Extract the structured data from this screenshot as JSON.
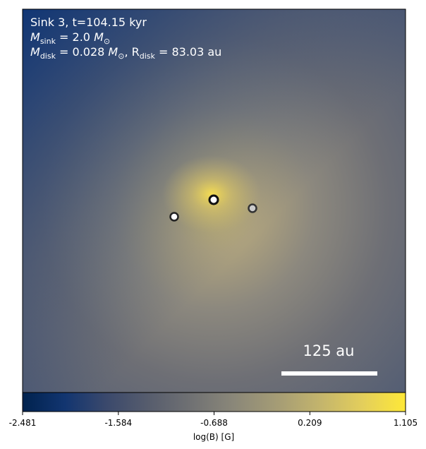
{
  "info": {
    "lines": [
      [
        {
          "t": "Sink 3, t=104.15 kyr"
        }
      ],
      [
        {
          "t": "M"
        },
        {
          "sub": "sink"
        },
        {
          "t": " = 2.0 "
        },
        {
          "t": "M"
        },
        {
          "sub": "⊙"
        }
      ],
      [
        {
          "t": "M"
        },
        {
          "sub": "disk"
        },
        {
          "t": " = 0.028 "
        },
        {
          "t": "M"
        },
        {
          "sub": "⊙"
        },
        {
          "t": ", R"
        },
        {
          "sub": "disk"
        },
        {
          "t": " = 83.03 au"
        }
      ]
    ]
  },
  "scale_bar": {
    "label": "125 au"
  },
  "colorbar": {
    "lim": [
      -2.481,
      1.105
    ],
    "ticks": [
      -2.481,
      -1.584,
      -0.688,
      0.209,
      1.105
    ],
    "label": "log(B) [G]"
  }
}
